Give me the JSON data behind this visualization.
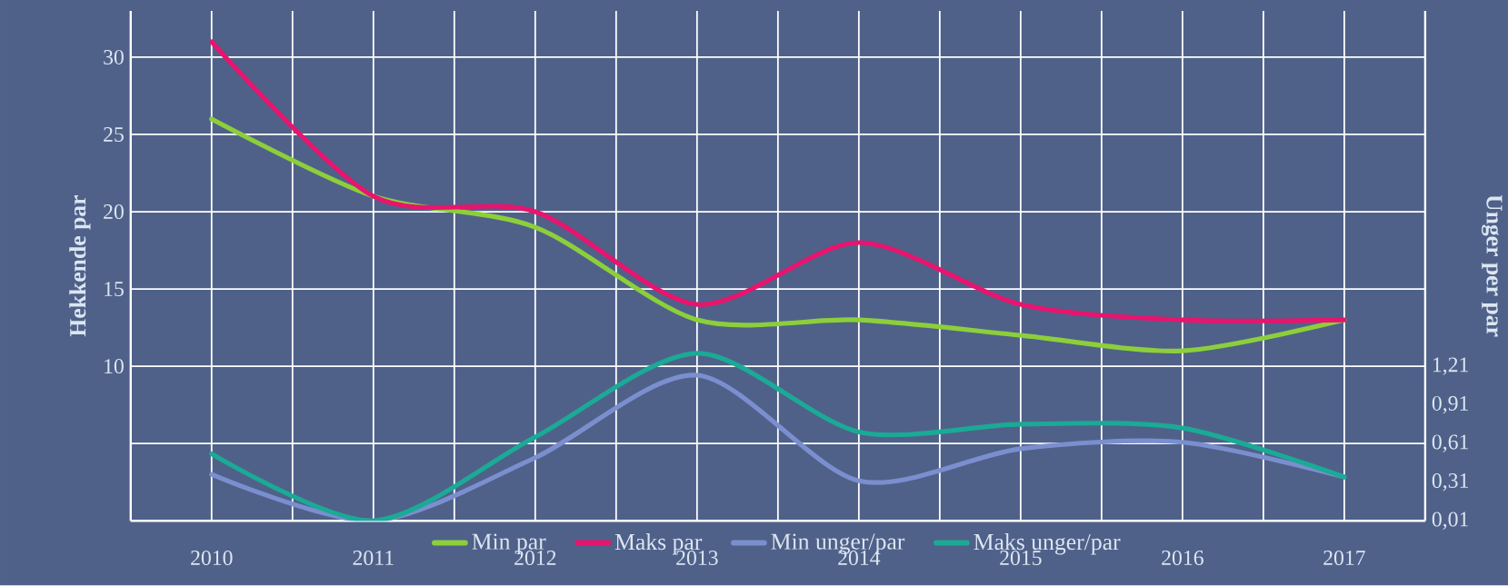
{
  "chart_data": {
    "type": "line",
    "ylabel": "Hekkende par",
    "y2label": "Unger per par",
    "categories": [
      "2010",
      "2011",
      "2012",
      "2013",
      "2014",
      "2015",
      "2016",
      "2017"
    ],
    "series": [
      {
        "name": "Min par",
        "color": "#8ccf3a",
        "values": [
          26,
          21,
          19,
          13,
          13,
          12,
          11,
          13
        ]
      },
      {
        "name": "Maks par",
        "color": "#e8146e",
        "values": [
          31,
          21,
          20,
          14,
          18,
          14,
          13,
          13
        ]
      },
      {
        "name": "Min unger/par",
        "color": "#7b8fcf",
        "axis": "y2",
        "values": [
          0.37,
          0.01,
          0.5,
          1.14,
          0.32,
          0.57,
          0.62,
          0.35
        ]
      },
      {
        "name": "Maks unger/par",
        "color": "#1aaa96",
        "axis": "y2",
        "values": [
          0.53,
          0.01,
          0.66,
          1.31,
          0.7,
          0.76,
          0.73,
          0.35
        ]
      }
    ],
    "ylim": [
      0,
      33
    ],
    "yticks": [
      {
        "value": 0,
        "label": null
      },
      {
        "value": 5,
        "label": null
      },
      10,
      15,
      20,
      25,
      30
    ],
    "y2lim": [
      0.01,
      3.97
    ],
    "y2ticks": [
      {
        "value": 0.01,
        "label": "0,01"
      },
      {
        "value": 0.31,
        "label": "0,31"
      },
      {
        "value": 0.61,
        "label": "0,61"
      },
      {
        "value": 0.91,
        "label": "0,91"
      },
      {
        "value": 1.21,
        "label": "1,21"
      }
    ],
    "grid": true,
    "legend": "bottom"
  }
}
